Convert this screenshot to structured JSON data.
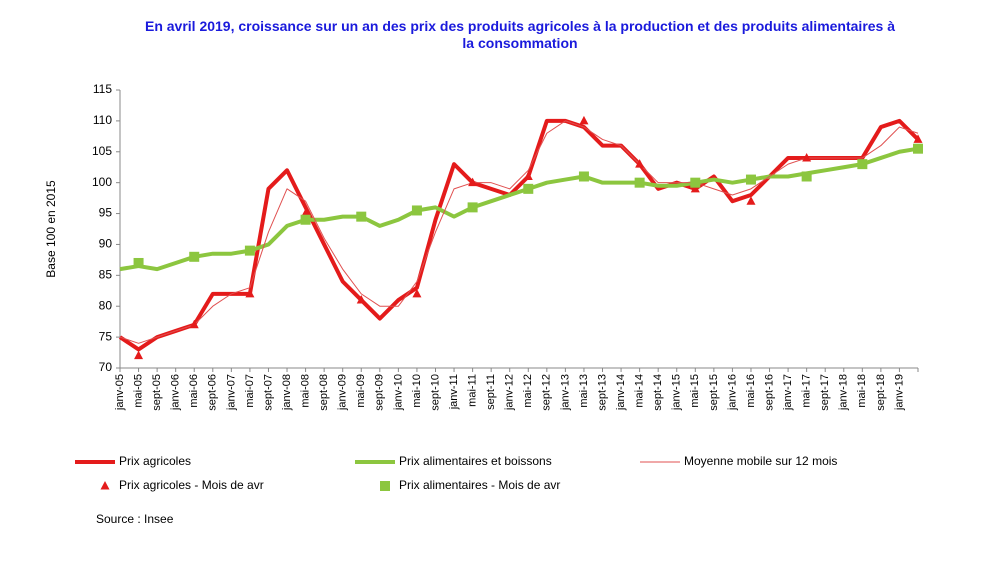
{
  "chart_data": {
    "type": "line",
    "title": "En avril 2019, croissance sur un an des prix des produits agricoles à la production et des produits alimentaires à la consommation",
    "y_label": "Base 100 en 2015",
    "source": "Source : Insee",
    "categories": [
      "janv-05",
      "mai-05",
      "sept-05",
      "janv-06",
      "mai-06",
      "sept-06",
      "janv-07",
      "mai-07",
      "sept-07",
      "janv-08",
      "mai-08",
      "sept-08",
      "janv-09",
      "mai-09",
      "sept-09",
      "janv-10",
      "mai-10",
      "sept-10",
      "janv-11",
      "mai-11",
      "sept-11",
      "janv-12",
      "mai-12",
      "sept-12",
      "janv-13",
      "mai-13",
      "sept-13",
      "janv-14",
      "mai-14",
      "sept-14",
      "janv-15",
      "mai-15",
      "sept-15",
      "janv-16",
      "mai-16",
      "sept-16",
      "janv-17",
      "mai-17",
      "sept-17",
      "janv-18",
      "mai-18",
      "sept-18",
      "janv-19",
      null
    ],
    "ylim": [
      70,
      115
    ],
    "yticks": [
      70,
      75,
      80,
      85,
      90,
      95,
      100,
      105,
      110,
      115
    ],
    "series": [
      {
        "name": "Prix agricoles",
        "color": "#e41b1b",
        "style": "line",
        "width": 4,
        "values": [
          75,
          73,
          75,
          76,
          77,
          82,
          82,
          82,
          99,
          102,
          96,
          90,
          84,
          81,
          78,
          81,
          83,
          94,
          103,
          100,
          99,
          98,
          101,
          110,
          110,
          109,
          106,
          106,
          103,
          99,
          100,
          99,
          101,
          97,
          98,
          101,
          104,
          104,
          104,
          104,
          104,
          109,
          110,
          107
        ]
      },
      {
        "name": "Prix alimentaires et boissons",
        "color": "#8cc63f",
        "style": "line",
        "width": 4,
        "values": [
          86,
          86.5,
          86,
          87,
          88,
          88.5,
          88.5,
          89,
          90,
          93,
          94,
          94,
          94.5,
          94.5,
          93,
          94,
          95.5,
          96,
          94.5,
          96,
          97,
          98,
          99,
          100,
          100.5,
          101,
          100,
          100,
          100,
          99.5,
          99.5,
          100,
          100.5,
          100,
          100.5,
          101,
          101,
          101.5,
          102,
          102.5,
          103,
          104,
          105,
          105.5
        ]
      },
      {
        "name": "Moyenne mobile sur 12 mois",
        "color": "#e05050",
        "style": "line",
        "width": 1,
        "values": [
          75,
          74,
          75,
          76,
          77,
          80,
          82,
          83,
          92,
          99,
          97,
          91,
          86,
          82,
          80,
          80,
          84,
          92,
          99,
          100,
          100,
          99,
          102,
          108,
          110,
          109,
          107,
          106,
          103,
          100,
          100,
          100,
          99,
          98,
          99,
          101,
          103,
          104,
          104,
          104,
          104,
          106,
          109,
          108
        ]
      },
      {
        "name": "Prix agricoles - Mois de avr",
        "color": "#e41b1b",
        "style": "triangle",
        "values": [
          null,
          72,
          null,
          null,
          77,
          null,
          null,
          82,
          null,
          null,
          95,
          null,
          null,
          81,
          null,
          null,
          82,
          null,
          null,
          100,
          null,
          null,
          101,
          null,
          null,
          110,
          null,
          null,
          103,
          null,
          null,
          99,
          null,
          null,
          97,
          null,
          null,
          104,
          null,
          null,
          103,
          null,
          null,
          107
        ]
      },
      {
        "name": "Prix alimentaires - Mois de avr",
        "color": "#8cc63f",
        "style": "square",
        "values": [
          null,
          87,
          null,
          null,
          88,
          null,
          null,
          89,
          null,
          null,
          94,
          null,
          null,
          94.5,
          null,
          null,
          95.5,
          null,
          null,
          96,
          null,
          null,
          99,
          null,
          null,
          101,
          null,
          null,
          100,
          null,
          null,
          100,
          null,
          null,
          100.5,
          null,
          null,
          101,
          null,
          null,
          103,
          null,
          null,
          105.5
        ]
      }
    ]
  }
}
